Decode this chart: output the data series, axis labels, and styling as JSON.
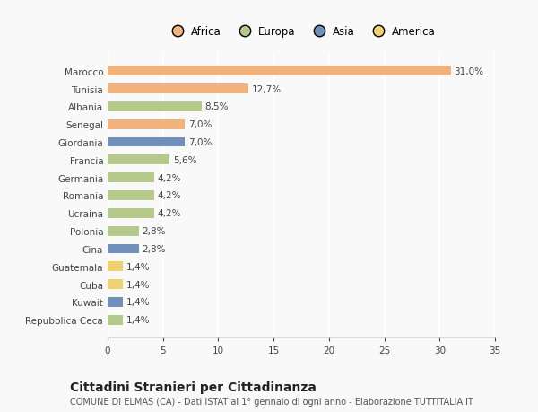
{
  "categories": [
    "Marocco",
    "Tunisia",
    "Albania",
    "Senegal",
    "Giordania",
    "Francia",
    "Germania",
    "Romania",
    "Ucraina",
    "Polonia",
    "Cina",
    "Guatemala",
    "Cuba",
    "Kuwait",
    "Repubblica Ceca"
  ],
  "values": [
    31.0,
    12.7,
    8.5,
    7.0,
    7.0,
    5.6,
    4.2,
    4.2,
    4.2,
    2.8,
    2.8,
    1.4,
    1.4,
    1.4,
    1.4
  ],
  "labels": [
    "31,0%",
    "12,7%",
    "8,5%",
    "7,0%",
    "7,0%",
    "5,6%",
    "4,2%",
    "4,2%",
    "4,2%",
    "2,8%",
    "2,8%",
    "1,4%",
    "1,4%",
    "1,4%",
    "1,4%"
  ],
  "colors": [
    "#f2b27e",
    "#f2b27e",
    "#b5c98a",
    "#f2b27e",
    "#7090bb",
    "#b5c98a",
    "#b5c98a",
    "#b5c98a",
    "#b5c98a",
    "#b5c98a",
    "#7090bb",
    "#f0d070",
    "#f0d070",
    "#7090bb",
    "#b5c98a"
  ],
  "legend": [
    {
      "label": "Africa",
      "color": "#f2b27e"
    },
    {
      "label": "Europa",
      "color": "#b5c98a"
    },
    {
      "label": "Asia",
      "color": "#7090bb"
    },
    {
      "label": "America",
      "color": "#f0d070"
    }
  ],
  "title": "Cittadini Stranieri per Cittadinanza",
  "subtitle": "COMUNE DI ELMAS (CA) - Dati ISTAT al 1° gennaio di ogni anno - Elaborazione TUTTITALIA.IT",
  "xlim": [
    0,
    35
  ],
  "xticks": [
    0,
    5,
    10,
    15,
    20,
    25,
    30,
    35
  ],
  "background_color": "#f9f9f9",
  "bar_height": 0.55,
  "grid_color": "#ffffff",
  "label_fontsize": 7.5,
  "tick_fontsize": 7.5,
  "title_fontsize": 10,
  "subtitle_fontsize": 7
}
